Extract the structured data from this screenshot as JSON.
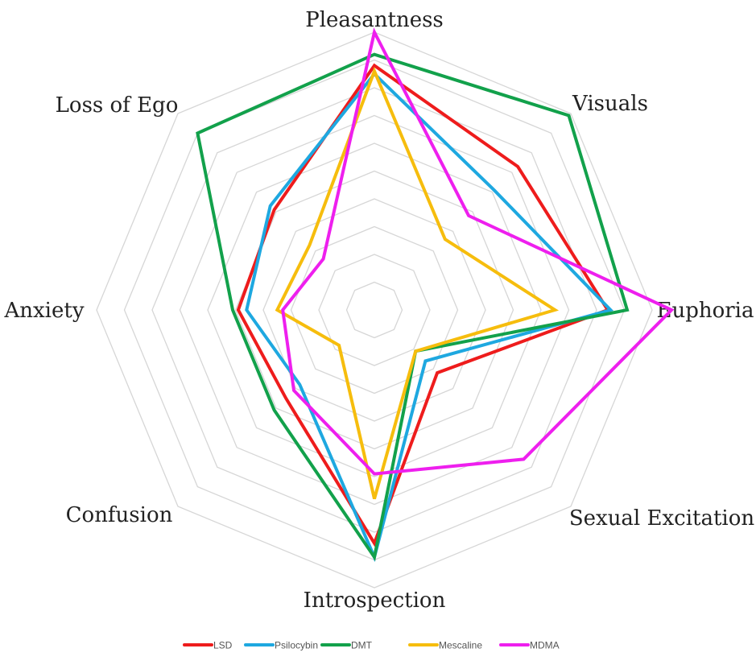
{
  "chart_data": {
    "type": "radar",
    "axes": [
      "Pleasantness",
      "Visuals",
      "Euphoria",
      "Sexual Excitation",
      "Introspection",
      "Confusion",
      "Anxiety",
      "Loss of Ego"
    ],
    "rlim": [
      0,
      10
    ],
    "grid": true,
    "legend_position": "bottom",
    "series": [
      {
        "name": "LSD",
        "color": "#ee1c1c",
        "values": [
          8.8,
          7.3,
          8.4,
          3.2,
          8.4,
          4.5,
          4.9,
          5.1
        ]
      },
      {
        "name": "Psilocybin",
        "color": "#1ea8e0",
        "values": [
          8.5,
          6.1,
          8.5,
          2.6,
          8.9,
          3.8,
          4.6,
          5.3
        ]
      },
      {
        "name": "DMT",
        "color": "#12a14b",
        "values": [
          9.2,
          9.9,
          9.1,
          2.1,
          8.9,
          5.1,
          5.1,
          9.0
        ]
      },
      {
        "name": "Mescaline",
        "color": "#f6bd0d",
        "values": [
          8.6,
          3.6,
          6.5,
          2.1,
          6.8,
          1.8,
          3.5,
          3.3
        ]
      },
      {
        "name": "MDMA",
        "color": "#ee1fee",
        "values": [
          10.0,
          4.8,
          10.7,
          7.6,
          5.9,
          4.1,
          3.3,
          2.6
        ]
      }
    ]
  }
}
